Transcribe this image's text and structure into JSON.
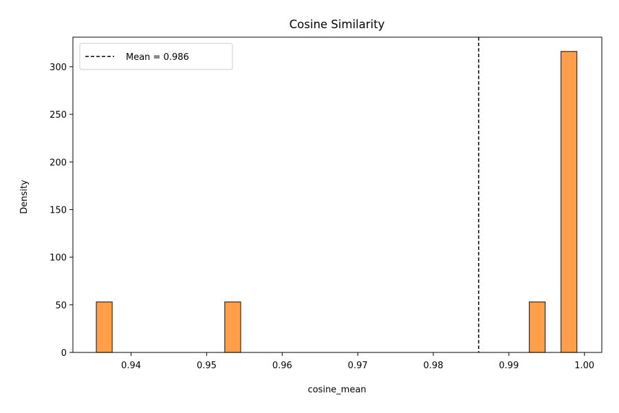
{
  "chart_data": {
    "type": "bar",
    "title": "Cosine Similarity",
    "xlabel": "cosine_mean",
    "ylabel": "Density",
    "xlim": [
      0.9323,
      1.0023
    ],
    "ylim": [
      0,
      331
    ],
    "xticks": [
      0.94,
      0.95,
      0.96,
      0.97,
      0.98,
      0.99,
      1.0
    ],
    "xtick_labels": [
      "0.94",
      "0.95",
      "0.96",
      "0.97",
      "0.98",
      "0.99",
      "1.00"
    ],
    "yticks": [
      0,
      50,
      100,
      150,
      200,
      250,
      300
    ],
    "ytick_labels": [
      "0",
      "50",
      "100",
      "150",
      "200",
      "250",
      "300"
    ],
    "bins": [
      {
        "x0": 0.9354,
        "x1": 0.9375,
        "value": 53
      },
      {
        "x0": 0.9524,
        "x1": 0.9545,
        "value": 53
      },
      {
        "x0": 0.9927,
        "x1": 0.9948,
        "value": 53
      },
      {
        "x0": 0.9969,
        "x1": 0.999,
        "value": 316
      }
    ],
    "bar_color": "#ff9f4a",
    "bar_edge_color": "#3a2a1a",
    "mean_line": {
      "x": 0.986,
      "label": "Mean = 0.986",
      "style": "dashed",
      "color": "#000000"
    },
    "legend": {
      "position": "top-left",
      "entries": [
        "Mean = 0.986"
      ]
    },
    "grid": false
  }
}
